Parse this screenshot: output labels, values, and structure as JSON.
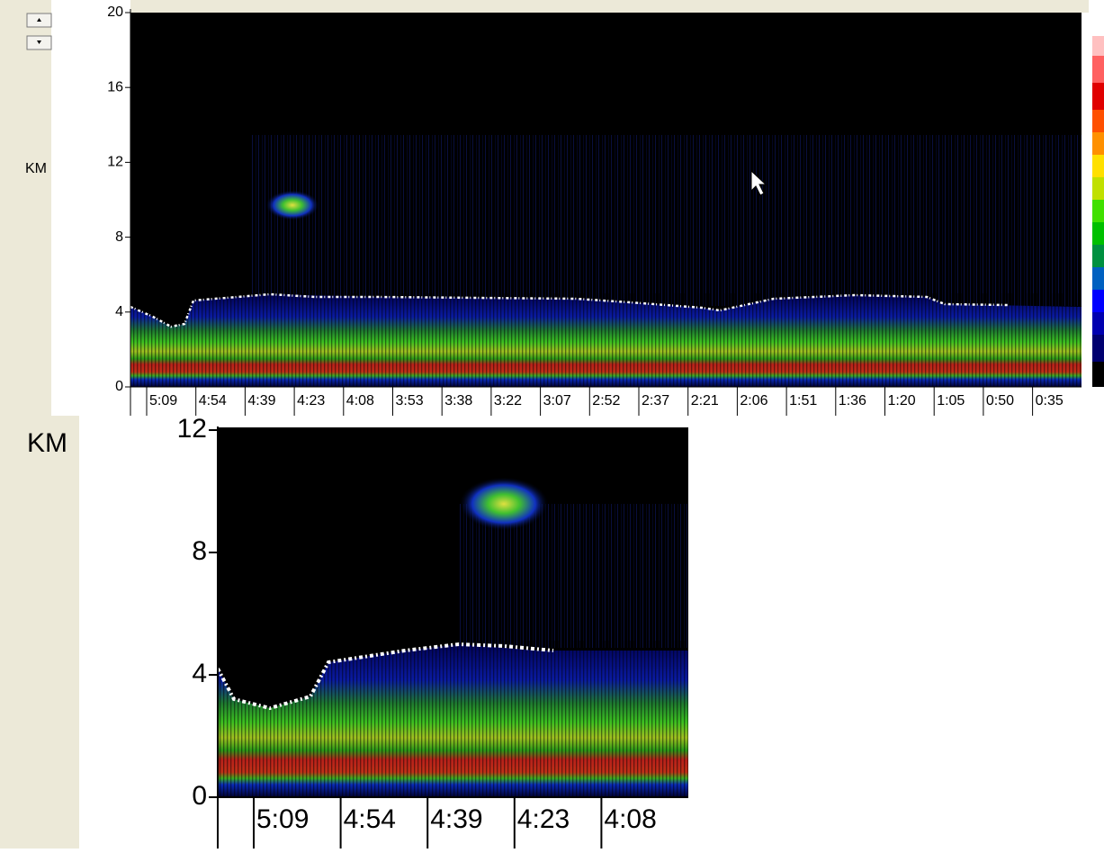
{
  "top_panel": {
    "axis_label": "KM",
    "ylim": [
      0,
      20
    ],
    "yticks": [
      0,
      4,
      8,
      12,
      16,
      20
    ],
    "time_labels": [
      "5:09",
      "4:54",
      "4:39",
      "4:23",
      "4:08",
      "3:53",
      "3:38",
      "3:22",
      "3:07",
      "2:52",
      "2:37",
      "2:21",
      "2:06",
      "1:51",
      "1:36",
      "1:20",
      "1:05",
      "0:50",
      "0:35"
    ]
  },
  "zoom_panel": {
    "axis_label": "KM",
    "ylim": [
      0,
      12
    ],
    "yticks": [
      0,
      4,
      8,
      12
    ],
    "time_labels": [
      "5:09",
      "4:54",
      "4:39",
      "4:23",
      "4:08"
    ]
  }
}
